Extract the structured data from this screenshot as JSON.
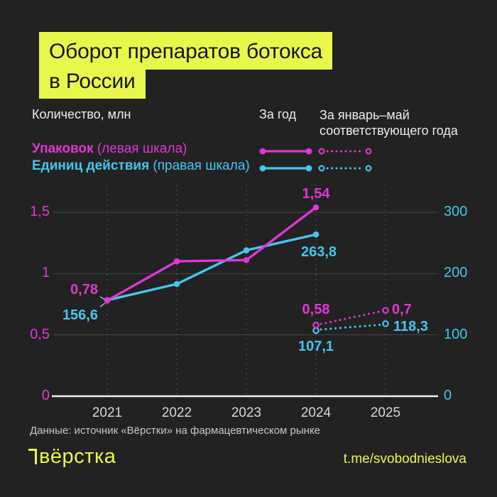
{
  "page": {
    "background": "#222222",
    "accent_yellow": "#e9f64b"
  },
  "title": {
    "line1": "Оборот препаратов ботокса",
    "line2": "в России"
  },
  "legend": {
    "axis_note": "Количество, млн",
    "col_year": "За год",
    "col_jan_may": "За январь–май соответствующего года",
    "rows": [
      {
        "name_bold": "Упаковок",
        "name_rest": " (левая шкала)",
        "color": "#e136d6"
      },
      {
        "name_bold": "Единиц действия",
        "name_rest": " (правая шкала)",
        "color": "#45c6ef"
      }
    ]
  },
  "chart_data": {
    "type": "line",
    "x_categories": [
      "2021",
      "2022",
      "2023",
      "2024",
      "2025"
    ],
    "left_axis": {
      "range": [
        0,
        1.5
      ],
      "color": "#e136d6",
      "ticks": [
        {
          "v": 0,
          "label": "0"
        },
        {
          "v": 0.5,
          "label": "0,5"
        },
        {
          "v": 1,
          "label": "1"
        },
        {
          "v": 1.5,
          "label": "1,5"
        }
      ]
    },
    "right_axis": {
      "range": [
        0,
        300
      ],
      "color": "#45c6ef",
      "ticks": [
        {
          "v": 0,
          "label": "0"
        },
        {
          "v": 100,
          "label": "100"
        },
        {
          "v": 200,
          "label": "200"
        },
        {
          "v": 300,
          "label": "300"
        }
      ]
    },
    "series": [
      {
        "name": "Упаковок, за год",
        "axis": "left",
        "style": "solid",
        "color": "#e136d6",
        "points": [
          {
            "x": "2021",
            "y": 0.78
          },
          {
            "x": "2022",
            "y": 1.1
          },
          {
            "x": "2023",
            "y": 1.11
          },
          {
            "x": "2024",
            "y": 1.54
          }
        ]
      },
      {
        "name": "Единиц действия, за год",
        "axis": "right",
        "style": "solid",
        "color": "#45c6ef",
        "points": [
          {
            "x": "2021",
            "y": 156.6
          },
          {
            "x": "2022",
            "y": 183
          },
          {
            "x": "2023",
            "y": 238
          },
          {
            "x": "2024",
            "y": 263.8
          }
        ]
      },
      {
        "name": "Упаковок, за январь–май",
        "axis": "left",
        "style": "dotted",
        "color": "#e136d6",
        "points": [
          {
            "x": "2024",
            "y": 0.58
          },
          {
            "x": "2025",
            "y": 0.7
          }
        ]
      },
      {
        "name": "Единиц действия, за январь–май",
        "axis": "right",
        "style": "dotted",
        "color": "#45c6ef",
        "points": [
          {
            "x": "2024",
            "y": 107.1
          },
          {
            "x": "2025",
            "y": 118.3
          }
        ]
      }
    ],
    "data_labels": {
      "pack_2021": "0,78",
      "units_2021": "156,6",
      "pack_2024": "1,54",
      "units_2024": "263,8",
      "pack_jm_2024": "0,58",
      "units_jm_2024": "107,1",
      "pack_jm_2025": "0,7",
      "units_jm_2025": "118,3"
    },
    "grid": {
      "h_color": "#474747",
      "v_color": "#5a5a5a",
      "axis_color": "#f2f2f2",
      "callout_color": "#b5b5b5",
      "year_label_color": "#d8d8d8"
    }
  },
  "footer": {
    "source": "Данные: источник «Вёрстки» на фармацевтическом рынке",
    "logo_text": "вёрстка",
    "link": "t.me/svobodnieslova"
  }
}
